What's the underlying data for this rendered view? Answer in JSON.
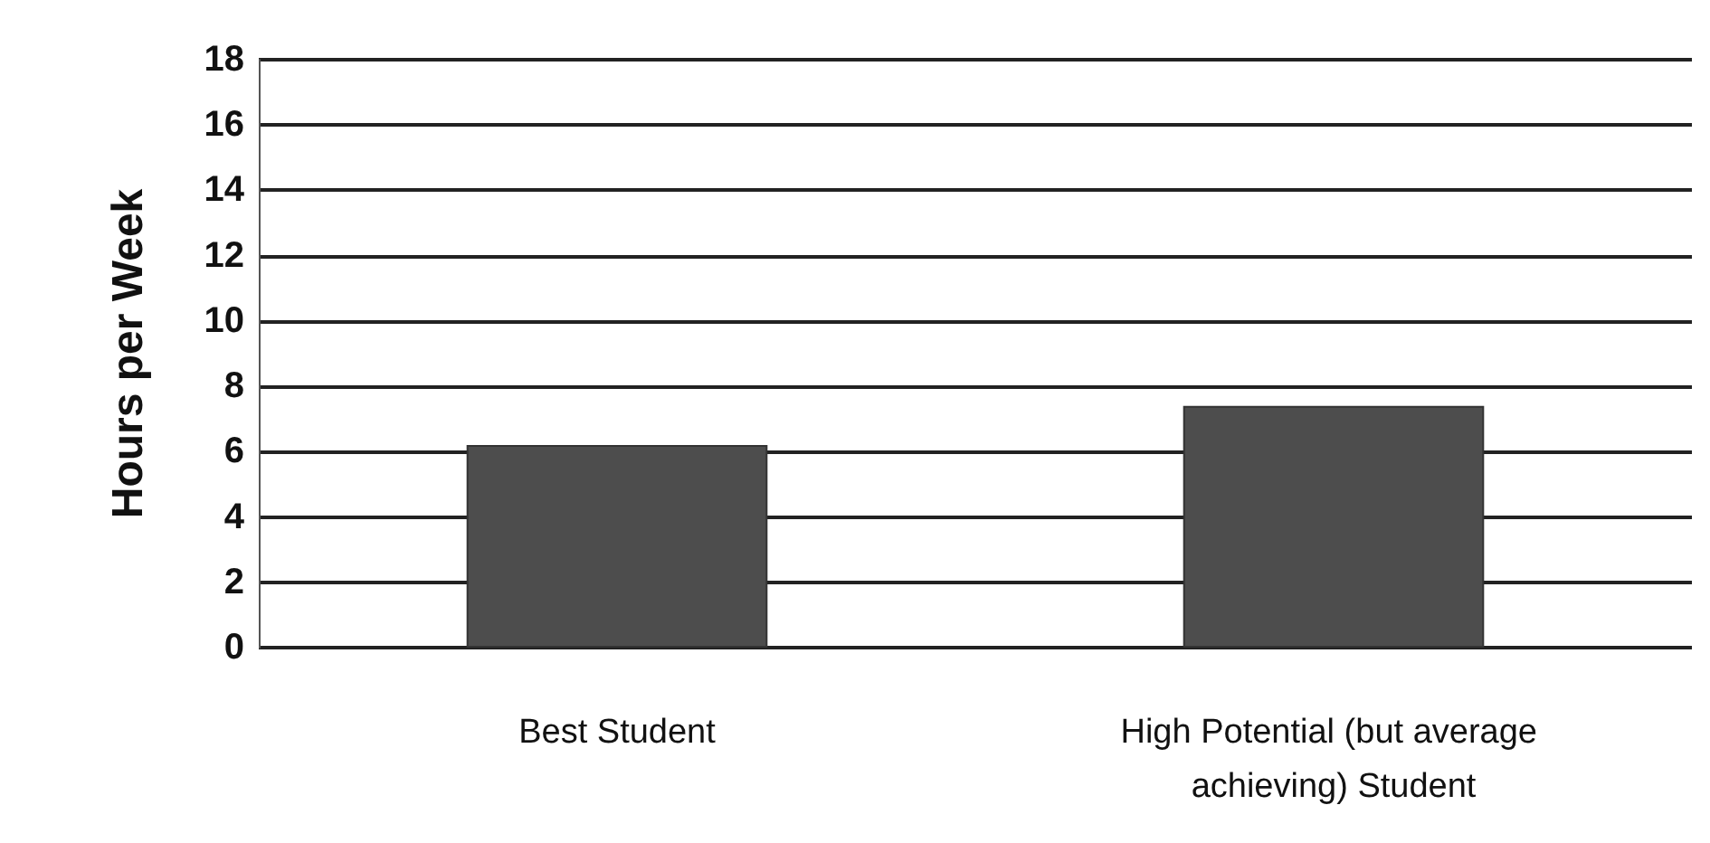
{
  "chart_data": {
    "type": "bar",
    "ylabel": "Hours per Week",
    "categories": [
      "Best Student",
      "High Potential (but average achieving) Student"
    ],
    "values": [
      6.2,
      7.4
    ],
    "color": "#4d4d4d",
    "ylim": [
      0,
      18
    ],
    "yticks": [
      0,
      2,
      4,
      6,
      8,
      10,
      12,
      14,
      16,
      18
    ],
    "grid": "y"
  }
}
